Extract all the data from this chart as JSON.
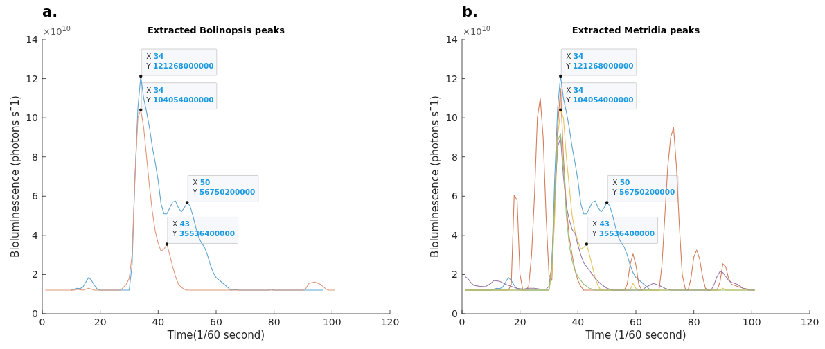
{
  "chart_data": [
    {
      "type": "line",
      "title": "Extracted Bolinopsis peaks",
      "xlabel": "Time(1/60 second)",
      "ylabel": "Bioluminescence (photons s¯1)",
      "annotations": [
        "a.",
        "×10$^{10}$",
        {
          "text": "X 34\nY 121268000000",
          "x": 34,
          "y": 12.1268
        },
        {
          "text": "X 34\nY 104054000000",
          "x": 34,
          "y": 10.4054
        },
        {
          "text": "X 50\nY 56750200000",
          "x": 50,
          "y": 5.67502
        },
        {
          "text": "X 43\nY 35536400000",
          "x": 43,
          "y": 3.55364
        }
      ],
      "xlim": [
        0,
        120
      ],
      "xticks": [
        0,
        20,
        40,
        60,
        80,
        100,
        120
      ],
      "ylim": [
        0,
        14
      ],
      "yticks": [
        0,
        2,
        4,
        6,
        8,
        10,
        12,
        14
      ],
      "grid": false,
      "series": [
        {
          "color": "#5fa5d0",
          "x": [
            10,
            11,
            12,
            13,
            14,
            15,
            16,
            17,
            18,
            19,
            20,
            30,
            31,
            32,
            33,
            34,
            35,
            36,
            37,
            38,
            39,
            40,
            41,
            42,
            43,
            44,
            45,
            46,
            47,
            48,
            49,
            50,
            51,
            52,
            53,
            54,
            55,
            56,
            57,
            58,
            59,
            60,
            62,
            64,
            65,
            66,
            67,
            68,
            78,
            79,
            80,
            97
          ],
          "values": [
            1.2,
            1.25,
            1.3,
            1.28,
            1.35,
            1.6,
            1.85,
            1.7,
            1.45,
            1.25,
            1.2,
            1.2,
            2.5,
            7.0,
            10.5,
            12.1268,
            11.0,
            10.3,
            9.5,
            8.5,
            7.7,
            6.8,
            5.6,
            5.1,
            5.1,
            5.4,
            5.7,
            5.75,
            5.4,
            5.2,
            5.4,
            5.67502,
            5.5,
            5.0,
            4.4,
            3.9,
            3.6,
            3.4,
            3.0,
            2.5,
            2.1,
            1.85,
            1.6,
            1.35,
            1.2,
            1.22,
            1.23,
            1.2,
            1.2,
            1.25,
            1.2,
            1.2
          ]
        },
        {
          "color": "#e0977a",
          "x": [
            1,
            11,
            12,
            14,
            16,
            18,
            27,
            29,
            30,
            31,
            32,
            33,
            34,
            35,
            36,
            37,
            38,
            39,
            40,
            41,
            42,
            43,
            44,
            45,
            46,
            47,
            48,
            49,
            50,
            90,
            91,
            92,
            94,
            96,
            98,
            99,
            101
          ],
          "values": [
            1.2,
            1.2,
            1.25,
            1.2,
            1.3,
            1.2,
            1.2,
            1.5,
            1.8,
            3.0,
            7.0,
            10.0,
            10.4054,
            9.5,
            8.0,
            6.5,
            5.2,
            4.2,
            3.6,
            3.2,
            3.3,
            3.55364,
            3.0,
            2.4,
            1.9,
            1.5,
            1.35,
            1.25,
            1.2,
            1.2,
            1.3,
            1.55,
            1.62,
            1.5,
            1.25,
            1.2,
            1.2
          ]
        }
      ]
    },
    {
      "type": "line",
      "title": "Extracted Metridia peaks",
      "xlabel": "Time (1/60 second)",
      "ylabel": "Bioluminescence (photons s¯1)",
      "annotations": [
        "b.",
        "×10$^{10}$",
        {
          "text": "X 34\nY 121268000000",
          "x": 34,
          "y": 12.1268
        },
        {
          "text": "X 34\nY 104054000000",
          "x": 34,
          "y": 10.4054
        },
        {
          "text": "X 50\nY 56750200000",
          "x": 50,
          "y": 5.67502
        },
        {
          "text": "X 43\nY 35536400000",
          "x": 43,
          "y": 3.55364
        }
      ],
      "xlim": [
        0,
        120
      ],
      "xticks": [
        0,
        20,
        40,
        60,
        80,
        100,
        120
      ],
      "ylim": [
        0,
        14
      ],
      "yticks": [
        0,
        2,
        4,
        6,
        8,
        10,
        12,
        14
      ],
      "grid": false,
      "series": [
        {
          "color": "#5fa5d0",
          "x": [
            1,
            10,
            11,
            12,
            13,
            14,
            15,
            16,
            17,
            18,
            19,
            20,
            30,
            31,
            32,
            33,
            34,
            35,
            36,
            37,
            38,
            39,
            40,
            41,
            42,
            43,
            44,
            45,
            46,
            47,
            48,
            49,
            50,
            51,
            52,
            53,
            54,
            55,
            56,
            57,
            58,
            59,
            60,
            62,
            64,
            65
          ],
          "values": [
            1.2,
            1.2,
            1.25,
            1.3,
            1.28,
            1.35,
            1.6,
            1.85,
            1.7,
            1.45,
            1.25,
            1.2,
            1.2,
            2.5,
            7.0,
            10.5,
            12.1268,
            11.0,
            10.3,
            9.5,
            8.5,
            7.7,
            6.8,
            5.6,
            5.1,
            5.1,
            5.4,
            5.7,
            5.75,
            5.4,
            5.2,
            5.4,
            5.67502,
            5.5,
            5.0,
            4.4,
            3.9,
            3.6,
            3.4,
            3.0,
            2.5,
            2.1,
            1.85,
            1.6,
            1.35,
            1.2
          ]
        },
        {
          "color": "#d47d5a",
          "x": [
            1,
            16,
            17,
            18,
            19,
            20,
            21,
            22,
            23,
            24,
            25,
            26,
            27,
            28,
            29,
            30,
            31,
            32,
            33,
            34,
            35,
            36,
            37,
            38,
            39,
            40,
            41,
            42,
            56,
            57,
            58,
            59,
            60,
            61,
            62,
            68,
            69,
            70,
            71,
            72,
            73,
            74,
            75,
            76,
            77,
            78,
            79,
            80,
            81,
            82,
            83,
            84,
            85,
            88,
            89,
            90,
            91,
            92,
            93,
            95,
            97,
            101
          ],
          "values": [
            1.2,
            1.2,
            1.5,
            6.05,
            5.8,
            2.0,
            1.2,
            1.2,
            1.4,
            3.0,
            6.0,
            10.0,
            11.0,
            9.0,
            5.0,
            2.0,
            1.7,
            6.0,
            9.5,
            11.5,
            8.0,
            5.5,
            3.9,
            3.0,
            2.2,
            1.7,
            1.4,
            1.2,
            1.2,
            1.5,
            2.5,
            3.05,
            2.5,
            1.5,
            1.2,
            1.2,
            2.5,
            5.0,
            7.5,
            9.0,
            9.5,
            7.5,
            4.5,
            2.0,
            1.3,
            1.2,
            1.8,
            2.9,
            3.25,
            2.8,
            1.9,
            1.3,
            1.2,
            1.2,
            1.6,
            2.55,
            2.4,
            1.8,
            1.5,
            1.4,
            1.3,
            1.2
          ]
        },
        {
          "color": "#e8c35a",
          "x": [
            1,
            30,
            31,
            32,
            33,
            34,
            35,
            36,
            37,
            38,
            39,
            40,
            41,
            42,
            43,
            44,
            45,
            46,
            47,
            48,
            58,
            59,
            60,
            61,
            89,
            90,
            91,
            101
          ],
          "values": [
            1.2,
            1.2,
            2.0,
            5.0,
            9.0,
            10.4054,
            10.0,
            8.0,
            6.5,
            5.0,
            4.2,
            3.7,
            3.3,
            3.4,
            3.55364,
            3.0,
            2.4,
            1.8,
            1.4,
            1.2,
            1.2,
            1.55,
            1.3,
            1.2,
            1.2,
            1.3,
            1.2,
            1.2
          ]
        },
        {
          "color": "#9a78a8",
          "x": [
            1,
            2,
            3,
            4,
            6,
            8,
            10,
            11,
            13,
            15,
            17,
            19,
            21,
            23,
            25,
            27,
            29,
            30,
            31,
            32,
            33,
            34,
            35,
            36,
            37,
            38,
            39,
            40,
            41,
            42,
            44,
            46,
            48,
            50,
            52,
            62,
            64,
            66,
            68,
            70,
            72,
            86,
            87,
            88,
            89,
            90,
            91,
            92,
            93,
            95,
            97,
            99,
            101
          ],
          "values": [
            1.9,
            1.8,
            1.6,
            1.45,
            1.4,
            1.38,
            1.55,
            1.7,
            1.65,
            1.5,
            1.4,
            1.3,
            1.25,
            1.3,
            1.3,
            1.25,
            1.25,
            1.4,
            2.5,
            6.0,
            8.5,
            9.0,
            7.0,
            5.5,
            4.8,
            4.3,
            4.1,
            3.5,
            3.0,
            2.6,
            2.2,
            1.8,
            1.5,
            1.3,
            1.2,
            1.2,
            1.4,
            1.55,
            1.45,
            1.3,
            1.2,
            1.2,
            1.5,
            1.9,
            2.15,
            2.1,
            1.9,
            1.7,
            1.6,
            1.5,
            1.3,
            1.2,
            1.2
          ]
        },
        {
          "color": "#98c279",
          "x": [
            1,
            30,
            31,
            32,
            33,
            34,
            35,
            36,
            37,
            38,
            39,
            40,
            41,
            42,
            44,
            46,
            78,
            79,
            80,
            101
          ],
          "values": [
            1.2,
            1.2,
            2.5,
            6.0,
            8.8,
            9.2,
            7.5,
            5.0,
            3.5,
            2.7,
            2.2,
            1.9,
            1.7,
            1.5,
            1.3,
            1.2,
            1.2,
            1.25,
            1.2,
            1.2
          ]
        }
      ]
    }
  ]
}
